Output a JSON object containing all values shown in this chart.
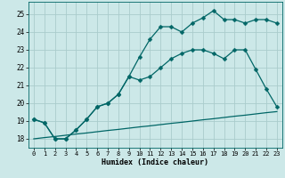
{
  "xlabel": "Humidex (Indice chaleur)",
  "background_color": "#cce8e8",
  "grid_color": "#aacccc",
  "line_color": "#006666",
  "xlim": [
    -0.5,
    23.5
  ],
  "ylim": [
    17.5,
    25.7
  ],
  "yticks": [
    18,
    19,
    20,
    21,
    22,
    23,
    24,
    25
  ],
  "xticks": [
    0,
    1,
    2,
    3,
    4,
    5,
    6,
    7,
    8,
    9,
    10,
    11,
    12,
    13,
    14,
    15,
    16,
    17,
    18,
    19,
    20,
    21,
    22,
    23
  ],
  "line1_x": [
    0,
    1,
    2,
    3,
    4,
    5,
    6,
    7,
    8,
    9,
    10,
    11,
    12,
    13,
    14,
    15,
    16,
    17,
    18,
    19,
    20,
    21,
    22,
    23
  ],
  "line1_y": [
    19.1,
    18.9,
    18.0,
    18.0,
    18.5,
    19.1,
    19.8,
    20.0,
    20.5,
    21.5,
    22.6,
    23.6,
    24.3,
    24.3,
    24.0,
    24.5,
    24.8,
    25.2,
    24.7,
    24.7,
    24.5,
    24.7,
    24.7,
    24.5
  ],
  "line2_x": [
    0,
    1,
    2,
    3,
    4,
    5,
    6,
    7,
    8,
    9,
    10,
    11,
    12,
    13,
    14,
    15,
    16,
    17,
    18,
    19,
    20,
    21,
    22,
    23
  ],
  "line2_y": [
    19.1,
    18.9,
    18.0,
    18.0,
    18.5,
    19.1,
    19.8,
    20.0,
    20.5,
    21.5,
    21.3,
    21.5,
    22.0,
    22.5,
    22.8,
    23.0,
    23.0,
    22.8,
    22.5,
    23.0,
    23.0,
    21.9,
    20.8,
    19.8
  ],
  "line3_x": [
    0,
    1,
    2,
    3,
    4,
    5,
    6,
    7,
    8,
    9,
    10,
    11,
    12,
    13,
    14,
    15,
    16,
    17,
    18,
    19,
    20,
    21,
    22,
    23
  ],
  "line3_y": [
    18.0,
    18.07,
    18.13,
    18.2,
    18.27,
    18.33,
    18.4,
    18.47,
    18.53,
    18.6,
    18.67,
    18.73,
    18.8,
    18.87,
    18.93,
    19.0,
    19.07,
    19.13,
    19.2,
    19.27,
    19.33,
    19.4,
    19.47,
    19.53
  ],
  "marker": "D",
  "markersize": 2.5,
  "linewidth": 0.9
}
